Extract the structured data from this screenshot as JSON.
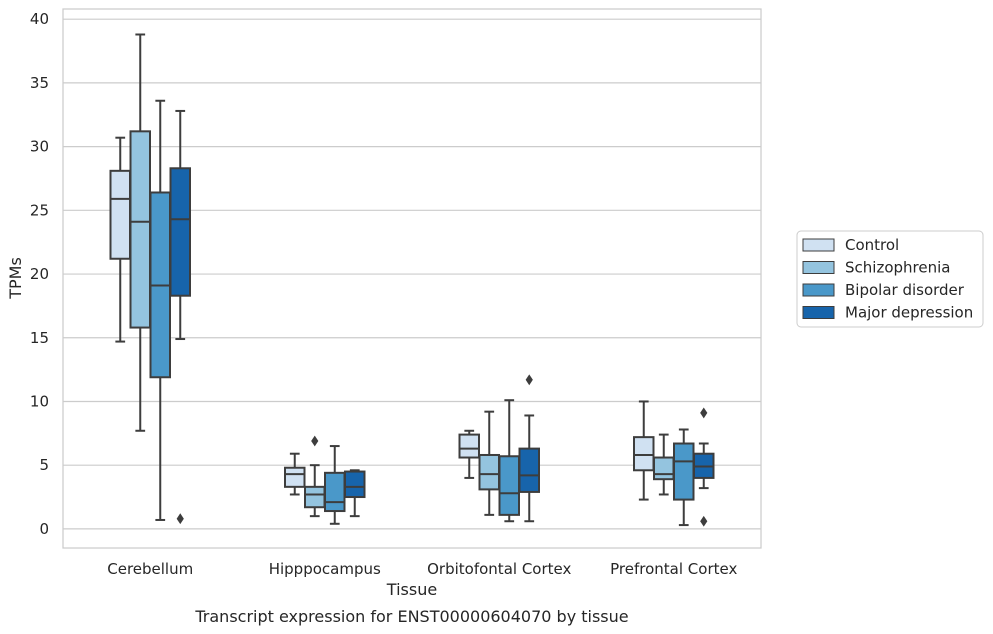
{
  "chart_data": {
    "type": "box",
    "caption": "Transcript expression for ENST00000604070 by tissue",
    "xlabel": "Tissue",
    "ylabel": "TPMs",
    "ylim": [
      -1.5,
      40.8
    ],
    "yticks": [
      0,
      5,
      10,
      15,
      20,
      25,
      30,
      35,
      40
    ],
    "grid": true,
    "legend_position": "right",
    "categories": [
      "Cerebellum",
      "Hipppocampus",
      "Orbitofontal Cortex",
      "Prefrontal Cortex"
    ],
    "series": [
      {
        "name": "Control",
        "color": "#d0e1f2",
        "boxes": [
          {
            "whislo": 14.7,
            "q1": 21.2,
            "med": 25.9,
            "q3": 28.1,
            "whishi": 30.7,
            "fliers": []
          },
          {
            "whislo": 2.7,
            "q1": 3.3,
            "med": 4.3,
            "q3": 4.8,
            "whishi": 5.9,
            "fliers": []
          },
          {
            "whislo": 4.0,
            "q1": 5.6,
            "med": 6.3,
            "q3": 7.4,
            "whishi": 7.7,
            "fliers": []
          },
          {
            "whislo": 2.3,
            "q1": 4.6,
            "med": 5.8,
            "q3": 7.2,
            "whishi": 10.0,
            "fliers": []
          }
        ]
      },
      {
        "name": "Schizophrenia",
        "color": "#94c4df",
        "boxes": [
          {
            "whislo": 7.7,
            "q1": 15.8,
            "med": 24.1,
            "q3": 31.2,
            "whishi": 38.8,
            "fliers": []
          },
          {
            "whislo": 1.0,
            "q1": 1.7,
            "med": 2.7,
            "q3": 3.3,
            "whishi": 5.0,
            "fliers": [
              6.9
            ]
          },
          {
            "whislo": 1.1,
            "q1": 3.1,
            "med": 4.3,
            "q3": 5.8,
            "whishi": 9.2,
            "fliers": []
          },
          {
            "whislo": 2.7,
            "q1": 3.9,
            "med": 4.3,
            "q3": 5.6,
            "whishi": 7.4,
            "fliers": []
          }
        ]
      },
      {
        "name": "Bipolar disorder",
        "color": "#4a98c9",
        "boxes": [
          {
            "whislo": 0.7,
            "q1": 11.9,
            "med": 19.1,
            "q3": 26.4,
            "whishi": 33.6,
            "fliers": []
          },
          {
            "whislo": 0.4,
            "q1": 1.4,
            "med": 2.1,
            "q3": 4.4,
            "whishi": 6.5,
            "fliers": []
          },
          {
            "whislo": 0.6,
            "q1": 1.1,
            "med": 2.8,
            "q3": 5.7,
            "whishi": 10.1,
            "fliers": []
          },
          {
            "whislo": 0.3,
            "q1": 2.3,
            "med": 5.3,
            "q3": 6.7,
            "whishi": 7.8,
            "fliers": []
          }
        ]
      },
      {
        "name": "Major depression",
        "color": "#1764ab",
        "boxes": [
          {
            "whislo": 14.9,
            "q1": 18.3,
            "med": 24.3,
            "q3": 28.3,
            "whishi": 32.8,
            "fliers": [
              0.8
            ]
          },
          {
            "whislo": 1.0,
            "q1": 2.5,
            "med": 3.3,
            "q3": 4.5,
            "whishi": 4.6,
            "fliers": []
          },
          {
            "whislo": 0.6,
            "q1": 2.9,
            "med": 4.2,
            "q3": 6.3,
            "whishi": 8.9,
            "fliers": [
              11.7
            ]
          },
          {
            "whislo": 3.2,
            "q1": 4.0,
            "med": 4.9,
            "q3": 5.9,
            "whishi": 6.7,
            "fliers": [
              9.1,
              0.6
            ]
          }
        ]
      }
    ]
  }
}
